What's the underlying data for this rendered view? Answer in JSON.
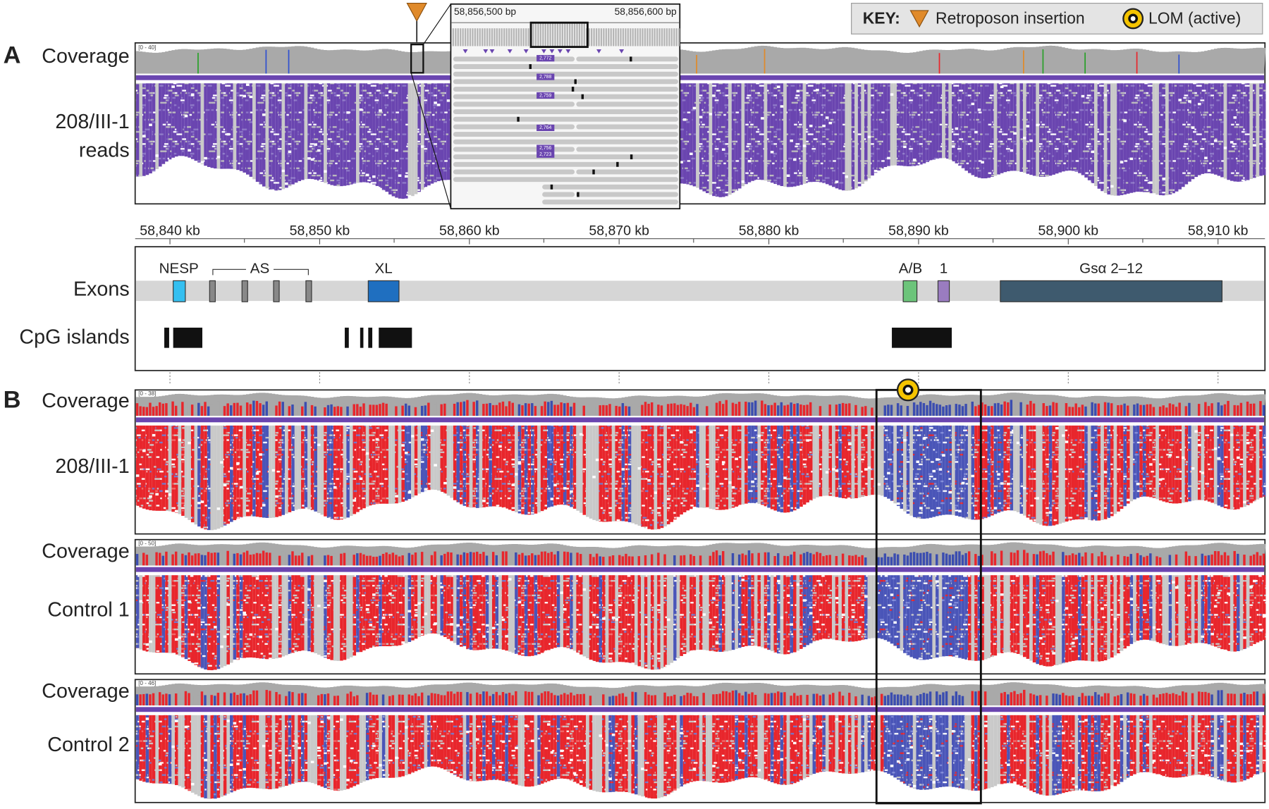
{
  "key": {
    "title": "KEY:",
    "insertion": "Retroposon insertion",
    "lom": "LOM (active)"
  },
  "panel_a": {
    "label": "A",
    "coverage": "Coverage",
    "coverage_range": "[0 - 40]",
    "sample_line1": "208/III-1",
    "sample_line2": "reads"
  },
  "inset": {
    "left_label": "58,856,500 bp",
    "right_label": "58,856,600 bp",
    "read_labels": [
      "2,772",
      "2,788",
      "2,759",
      "2,764",
      "2,756",
      "2,723"
    ]
  },
  "axis": {
    "ticks": [
      "58,840 kb",
      "58,850 kb",
      "58,860 kb",
      "58,870 kb",
      "58,880 kb",
      "58,890 kb",
      "58,900 kb",
      "58,910 kb"
    ]
  },
  "genes": {
    "exons_label": "Exons",
    "cpg_label": "CpG islands",
    "exons": [
      "NESP",
      "AS",
      "XL",
      "A/B",
      "1",
      "Gsα 2–12"
    ]
  },
  "panel_b": {
    "label": "B",
    "tracks": [
      {
        "coverage": "Coverage",
        "range": "[0 - 38]",
        "sample": "208/III-1"
      },
      {
        "coverage": "Coverage",
        "range": "[0 - 50]",
        "sample": "Control 1"
      },
      {
        "coverage": "Coverage",
        "range": "[0 - 46]",
        "sample": "Control 2"
      }
    ]
  }
}
